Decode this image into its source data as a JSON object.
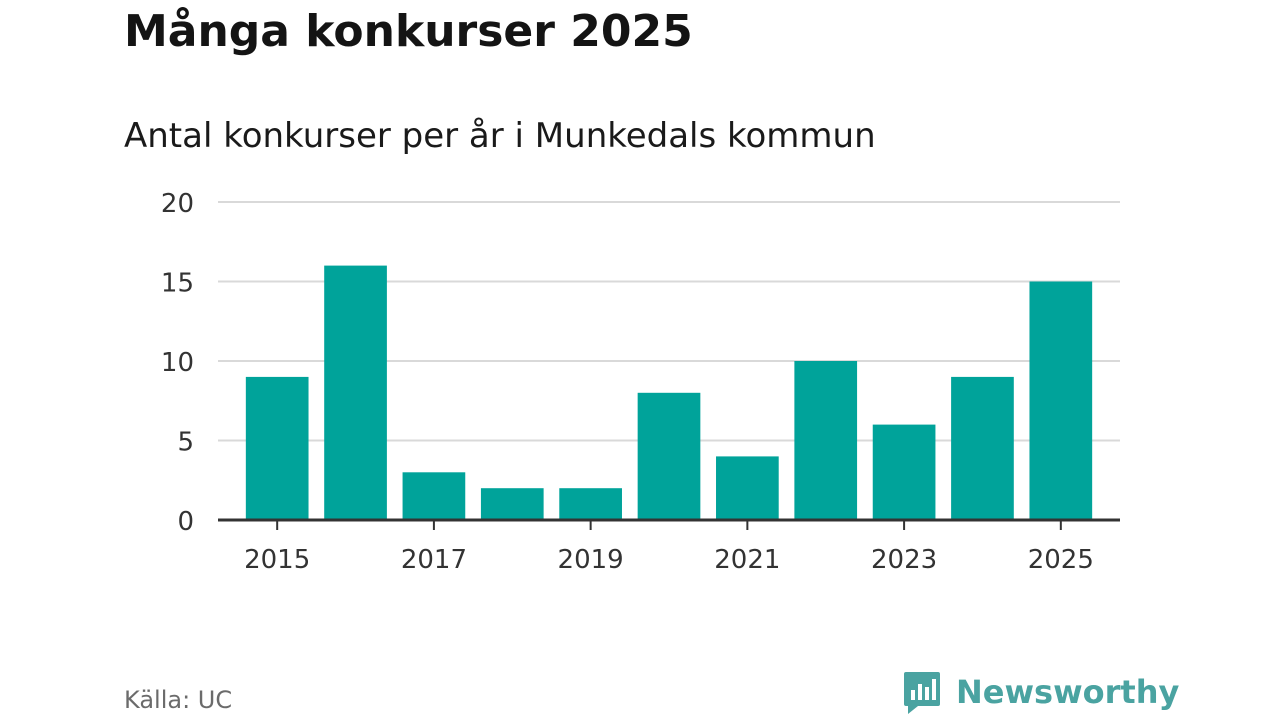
{
  "header": {
    "title": "Många konkurser 2025",
    "subtitle": "Antal konkurser per år i Munkedals kommun"
  },
  "footer": {
    "source": "Källa: UC",
    "brand": "Newsworthy"
  },
  "colors": {
    "bar": "#00a39a",
    "grid": "#d9d9d9",
    "axis": "#333333",
    "text": "#333333",
    "brand": "#4aa3a1"
  },
  "chart_data": {
    "type": "bar",
    "title": "Många konkurser 2025",
    "subtitle": "Antal konkurser per år i Munkedals kommun",
    "xlabel": "",
    "ylabel": "",
    "categories": [
      "2015",
      "2016",
      "2017",
      "2018",
      "2019",
      "2020",
      "2021",
      "2022",
      "2023",
      "2024",
      "2025"
    ],
    "values": [
      9,
      16,
      3,
      2,
      2,
      8,
      4,
      10,
      6,
      9,
      15
    ],
    "x_tick_labels": [
      "2015",
      "2017",
      "2019",
      "2021",
      "2023",
      "2025"
    ],
    "y_ticks": [
      0,
      5,
      10,
      15,
      20
    ],
    "ylim": [
      0,
      20
    ],
    "grid": true,
    "legend": "none"
  }
}
